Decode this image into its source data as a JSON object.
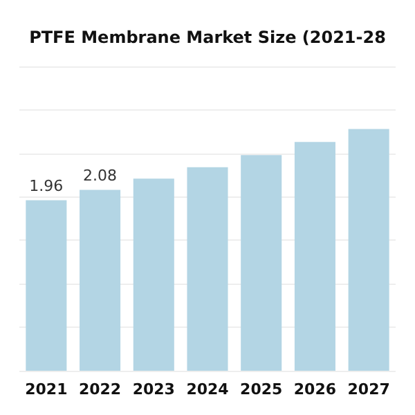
{
  "chart_data": {
    "type": "bar",
    "title": "PTFE Membrane Market Size (2021-28",
    "categories": [
      "2021",
      "2022",
      "2023",
      "2024",
      "2025",
      "2026",
      "2027"
    ],
    "values": [
      1.96,
      2.08,
      2.21,
      2.34,
      2.48,
      2.63,
      2.78
    ],
    "value_labels": [
      "1.96",
      "2.08",
      null,
      null,
      null,
      null,
      null
    ],
    "color": "#b3d5e4",
    "ylim": [
      0,
      3.5
    ],
    "yticks": [
      {
        "value": 0,
        "label": null
      },
      {
        "value": 0.5,
        "label": null
      },
      {
        "value": 1,
        "label": null
      },
      {
        "value": 1.5,
        "label": null
      },
      {
        "value": 2,
        "label": null
      },
      {
        "value": 2.5,
        "label": null
      },
      {
        "value": 3,
        "label": null
      },
      {
        "value": 3.5,
        "label": null
      }
    ],
    "tick_labels": "x",
    "grid": "y"
  }
}
